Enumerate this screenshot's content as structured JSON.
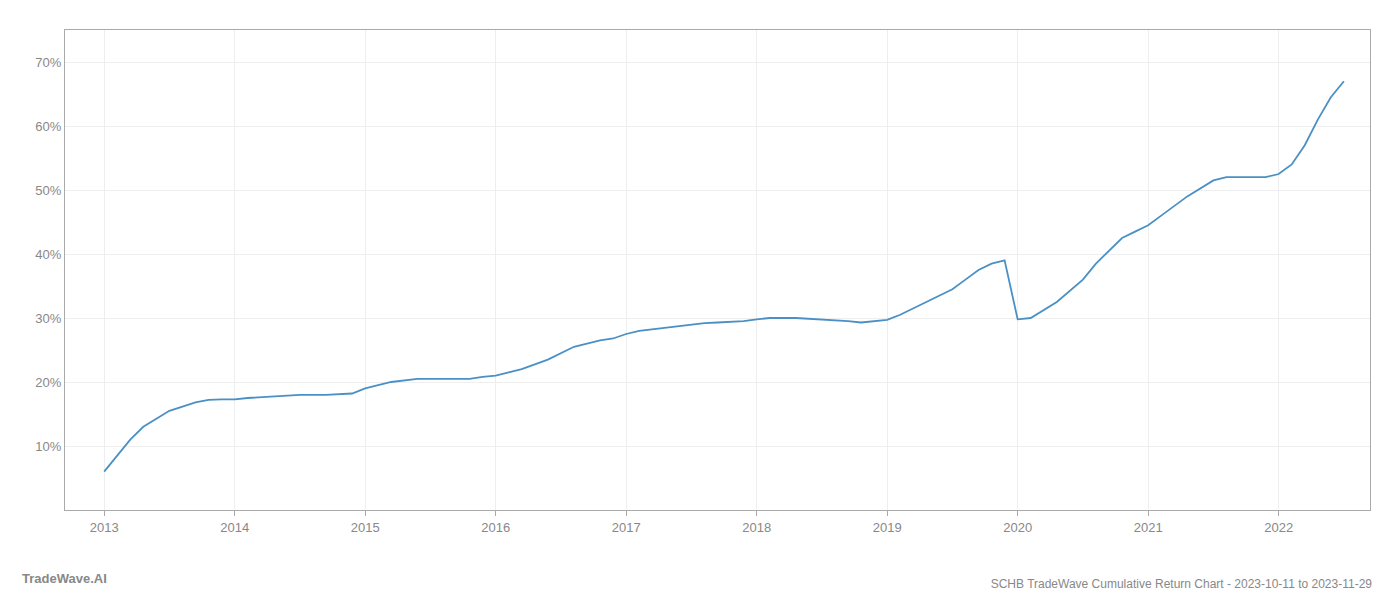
{
  "chart_data": {
    "type": "line",
    "title": "SCHB TradeWave Cumulative Return Chart - 2023-10-11 to 2023-11-29",
    "annotations": [
      "TradeWave.AI"
    ],
    "x": [
      2013.0,
      2013.1,
      2013.2,
      2013.3,
      2013.5,
      2013.7,
      2013.8,
      2013.9,
      2014.0,
      2014.1,
      2014.3,
      2014.5,
      2014.7,
      2014.9,
      2015.0,
      2015.1,
      2015.2,
      2015.4,
      2015.6,
      2015.8,
      2015.9,
      2016.0,
      2016.1,
      2016.2,
      2016.4,
      2016.5,
      2016.6,
      2016.7,
      2016.8,
      2016.9,
      2017.0,
      2017.1,
      2017.3,
      2017.5,
      2017.6,
      2017.7,
      2017.8,
      2017.9,
      2018.0,
      2018.1,
      2018.3,
      2018.5,
      2018.6,
      2018.7,
      2018.8,
      2018.9,
      2019.0,
      2019.1,
      2019.3,
      2019.5,
      2019.6,
      2019.7,
      2019.8,
      2019.9,
      2020.0,
      2020.1,
      2020.3,
      2020.5,
      2020.6,
      2020.7,
      2020.8,
      2020.9,
      2021.0,
      2021.1,
      2021.2,
      2021.3,
      2021.5,
      2021.6,
      2021.7,
      2021.8,
      2021.9,
      2022.0,
      2022.1,
      2022.2,
      2022.3,
      2022.4,
      2022.5
    ],
    "values": [
      6.0,
      8.5,
      11.0,
      13.0,
      15.5,
      16.8,
      17.2,
      17.3,
      17.3,
      17.5,
      17.8,
      18.0,
      18.0,
      18.2,
      19.0,
      19.5,
      20.0,
      20.5,
      20.5,
      20.5,
      20.8,
      21.0,
      21.5,
      22.0,
      23.5,
      24.5,
      25.5,
      26.0,
      26.5,
      26.8,
      27.5,
      28.0,
      28.5,
      29.0,
      29.2,
      29.3,
      29.4,
      29.5,
      29.8,
      30.0,
      30.0,
      29.8,
      29.6,
      29.5,
      29.3,
      29.5,
      29.7,
      30.5,
      32.5,
      34.5,
      36.0,
      37.5,
      38.5,
      39.0,
      29.8,
      30.0,
      32.5,
      36.0,
      38.5,
      40.5,
      42.5,
      43.5,
      44.5,
      46.0,
      47.5,
      49.0,
      51.5,
      52.0,
      52.0,
      52.0,
      52.0,
      52.5,
      54.0,
      57.0,
      61.0,
      64.5,
      67.0
    ],
    "color": "#4a90c4",
    "xlim": [
      2012.7,
      2022.7
    ],
    "xticks": [
      2013,
      2014,
      2015,
      2016,
      2017,
      2018,
      2019,
      2020,
      2021,
      2022
    ],
    "ylim": [
      0,
      75
    ],
    "yticks": [
      {
        "value": 10,
        "label": "10%"
      },
      {
        "value": 20,
        "label": "20%"
      },
      {
        "value": 30,
        "label": "30%"
      },
      {
        "value": 40,
        "label": "40%"
      },
      {
        "value": 50,
        "label": "50%"
      },
      {
        "value": 60,
        "label": "60%"
      },
      {
        "value": 70,
        "label": "70%"
      }
    ],
    "grid": true
  }
}
